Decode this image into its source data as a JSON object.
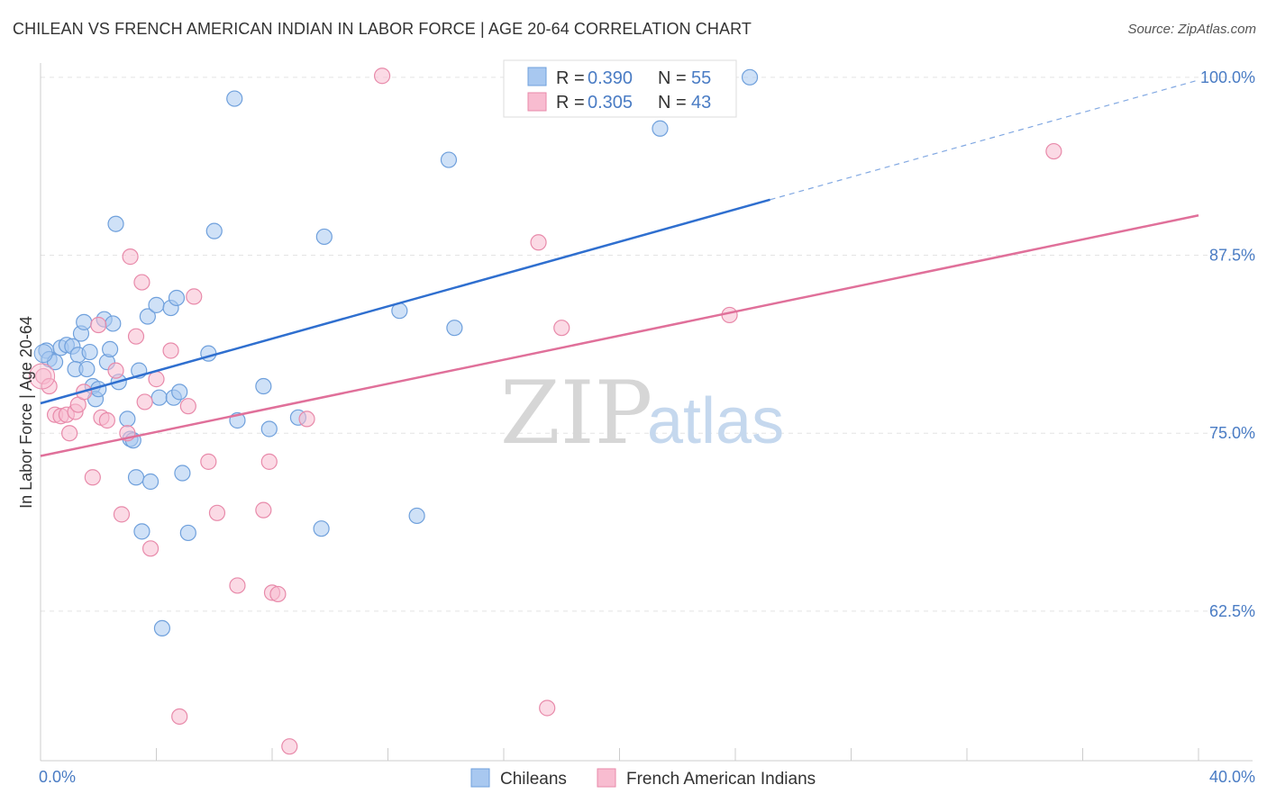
{
  "title": "CHILEAN VS FRENCH AMERICAN INDIAN IN LABOR FORCE | AGE 20-64 CORRELATION CHART",
  "source": "Source: ZipAtlas.com",
  "watermark": {
    "zip": "ZIP",
    "atlas": "atlas"
  },
  "chart_data": {
    "type": "scatter",
    "ylabel": "In Labor Force | Age 20-64",
    "xlim": [
      0,
      40
    ],
    "ylim": [
      52,
      101
    ],
    "x_tick_labels": [
      "0.0%",
      "40.0%"
    ],
    "y_ticks": [
      62.5,
      75.0,
      87.5,
      100.0
    ],
    "y_tick_labels": [
      "62.5%",
      "75.0%",
      "87.5%",
      "100.0%"
    ],
    "legend": {
      "r_label": "R =",
      "n_label": "N =",
      "items": [
        {
          "name": "Chileans",
          "r": "0.390",
          "n": "55",
          "color": "#a8c8f0",
          "stroke": "#6fa0dc",
          "line": "#2f6fcf"
        },
        {
          "name": "French American Indians",
          "r": "0.305",
          "n": "43",
          "color": "#f8bcd0",
          "stroke": "#e88aaa",
          "line": "#e0709a"
        }
      ]
    },
    "series": [
      {
        "name": "Chileans",
        "trend": {
          "x0": 0,
          "y0": 77.1,
          "x1": 25.2,
          "y1": 91.4,
          "dash_x1": 40,
          "dash_y1": 99.8
        },
        "points": [
          [
            0.2,
            80.8
          ],
          [
            0.3,
            80.2
          ],
          [
            0.5,
            80.0
          ],
          [
            0.7,
            81.0
          ],
          [
            0.9,
            81.2
          ],
          [
            1.1,
            81.1
          ],
          [
            1.3,
            80.5
          ],
          [
            1.2,
            79.5
          ],
          [
            1.4,
            82.0
          ],
          [
            1.5,
            82.8
          ],
          [
            1.6,
            79.5
          ],
          [
            1.7,
            80.7
          ],
          [
            1.8,
            78.3
          ],
          [
            1.9,
            77.4
          ],
          [
            2.0,
            78.1
          ],
          [
            2.2,
            83.0
          ],
          [
            2.3,
            80.0
          ],
          [
            2.5,
            82.7
          ],
          [
            2.4,
            80.9
          ],
          [
            2.6,
            89.7
          ],
          [
            2.7,
            78.6
          ],
          [
            3.0,
            76.0
          ],
          [
            3.1,
            74.6
          ],
          [
            3.2,
            74.5
          ],
          [
            3.3,
            71.9
          ],
          [
            3.4,
            79.4
          ],
          [
            3.5,
            68.1
          ],
          [
            3.7,
            83.2
          ],
          [
            3.8,
            71.6
          ],
          [
            4.0,
            84.0
          ],
          [
            4.1,
            77.5
          ],
          [
            4.2,
            61.3
          ],
          [
            4.5,
            83.8
          ],
          [
            4.6,
            77.5
          ],
          [
            4.7,
            84.5
          ],
          [
            4.8,
            77.9
          ],
          [
            4.9,
            72.2
          ],
          [
            5.1,
            68.0
          ],
          [
            5.8,
            80.6
          ],
          [
            6.0,
            89.2
          ],
          [
            6.7,
            98.5
          ],
          [
            6.8,
            75.9
          ],
          [
            7.7,
            78.3
          ],
          [
            7.9,
            75.3
          ],
          [
            8.9,
            76.1
          ],
          [
            9.8,
            88.8
          ],
          [
            9.7,
            68.3
          ],
          [
            12.4,
            83.6
          ],
          [
            13.0,
            69.2
          ],
          [
            14.1,
            94.2
          ],
          [
            14.3,
            82.4
          ],
          [
            21.4,
            96.4
          ],
          [
            24.5,
            100.0
          ]
        ]
      },
      {
        "name": "French American Indians",
        "trend": {
          "x0": 0,
          "y0": 73.4,
          "x1": 40,
          "y1": 90.3
        },
        "points": [
          [
            0.1,
            79.0
          ],
          [
            0.3,
            78.3
          ],
          [
            0.5,
            76.3
          ],
          [
            0.7,
            76.2
          ],
          [
            0.9,
            76.3
          ],
          [
            1.0,
            75.0
          ],
          [
            1.2,
            76.5
          ],
          [
            1.3,
            77.0
          ],
          [
            1.5,
            77.9
          ],
          [
            1.8,
            71.9
          ],
          [
            2.0,
            82.6
          ],
          [
            2.1,
            76.1
          ],
          [
            2.3,
            75.9
          ],
          [
            2.6,
            79.4
          ],
          [
            2.8,
            69.3
          ],
          [
            3.0,
            75.0
          ],
          [
            3.1,
            87.4
          ],
          [
            3.3,
            81.8
          ],
          [
            3.5,
            85.6
          ],
          [
            3.6,
            77.2
          ],
          [
            3.8,
            66.9
          ],
          [
            4.0,
            78.8
          ],
          [
            4.5,
            80.8
          ],
          [
            4.8,
            55.1
          ],
          [
            5.1,
            76.9
          ],
          [
            5.3,
            84.6
          ],
          [
            5.8,
            73.0
          ],
          [
            6.1,
            69.4
          ],
          [
            6.8,
            64.3
          ],
          [
            7.7,
            69.6
          ],
          [
            7.9,
            73.0
          ],
          [
            8.0,
            63.8
          ],
          [
            8.2,
            63.7
          ],
          [
            8.6,
            53.0
          ],
          [
            9.2,
            76.0
          ],
          [
            11.8,
            100.1
          ],
          [
            17.2,
            88.4
          ],
          [
            17.5,
            55.7
          ],
          [
            18.0,
            82.4
          ],
          [
            23.8,
            83.3
          ],
          [
            35.0,
            94.8
          ]
        ]
      }
    ]
  }
}
